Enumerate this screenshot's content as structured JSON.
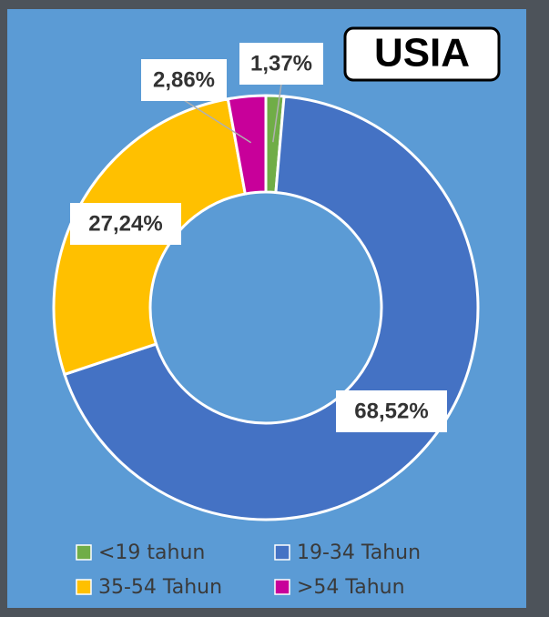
{
  "chart_data": {
    "type": "donut",
    "title": "USIA",
    "categories": [
      "<19 tahun",
      "19-34 Tahun",
      "35-54 Tahun",
      ">54 Tahun"
    ],
    "values": [
      1.37,
      68.52,
      27.24,
      2.86
    ],
    "value_labels": [
      "1,37%",
      "68,52%",
      "27,24%",
      "2,86%"
    ],
    "colors": [
      "#70ad47",
      "#4472c4",
      "#ffc000",
      "#c8009a"
    ],
    "legend": "bottom"
  }
}
